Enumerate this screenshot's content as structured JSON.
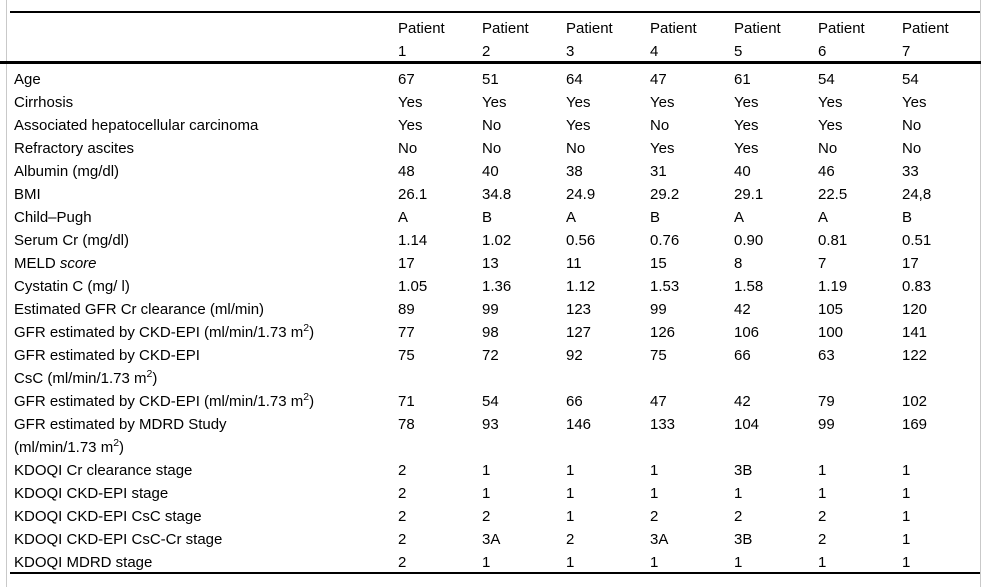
{
  "colors": {
    "text": "#000000",
    "rule": "#000000",
    "page_edge": "#c9c9c9",
    "background": "#ffffff"
  },
  "table": {
    "row_label_header": "",
    "patient_columns": [
      "Patient 1",
      "Patient 2",
      "Patient 3",
      "Patient 4",
      "Patient 5",
      "Patient 6",
      "Patient 7"
    ],
    "rows": [
      {
        "label": "Age",
        "values": [
          "67",
          "51",
          "64",
          "47",
          "61",
          "54",
          "54"
        ]
      },
      {
        "label": "Cirrhosis",
        "values": [
          "Yes",
          "Yes",
          "Yes",
          "Yes",
          "Yes",
          "Yes",
          "Yes"
        ]
      },
      {
        "label": "Associated hepatocellular carcinoma",
        "values": [
          "Yes",
          "No",
          "Yes",
          "No",
          "Yes",
          "Yes",
          "No"
        ]
      },
      {
        "label": "Refractory ascites",
        "values": [
          "No",
          "No",
          "No",
          "Yes",
          "Yes",
          "No",
          "No"
        ]
      },
      {
        "label": "Albumin (mg/dl)",
        "values": [
          "48",
          "40",
          "38",
          "31",
          "40",
          "46",
          "33"
        ]
      },
      {
        "label": "BMI",
        "values": [
          "26.1",
          "34.8",
          "24.9",
          "29.2",
          "29.1",
          "22.5",
          "24,8"
        ]
      },
      {
        "label": "Child–Pugh",
        "values": [
          "A",
          "B",
          "A",
          "B",
          "A",
          "A",
          "B"
        ]
      },
      {
        "label": "Serum Cr (mg/dl)",
        "values": [
          "1.14",
          "1.02",
          "0.56",
          "0.76",
          "0.90",
          "0.81",
          "0.51"
        ]
      },
      {
        "label": "MELD ",
        "label_italic": "score",
        "values": [
          "17",
          "13",
          "11",
          "15",
          "8",
          "7",
          "17"
        ]
      },
      {
        "label": "Cystatin C (mg/ l)",
        "values": [
          "1.05",
          "1.36",
          "1.12",
          "1.53",
          "1.58",
          "1.19",
          "0.83"
        ]
      },
      {
        "label": "Estimated GFR Cr clearance (ml/min)",
        "values": [
          "89",
          "99",
          "123",
          "99",
          "42",
          "105",
          "120"
        ]
      },
      {
        "label": "GFR estimated by CKD-EPI (ml/min/1.73 m²)",
        "values": [
          "77",
          "98",
          "127",
          "126",
          "106",
          "100",
          "141"
        ]
      },
      {
        "label": "GFR estimated by CKD-EPI",
        "label_line2": "CsC (ml/min/1.73 m²)",
        "values": [
          "75",
          "72",
          "92",
          "75",
          "66",
          "63",
          "122"
        ]
      },
      {
        "label": "GFR estimated by CKD-EPI (ml/min/1.73 m²)",
        "values": [
          "71",
          "54",
          "66",
          "47",
          "42",
          "79",
          "102"
        ]
      },
      {
        "label": "GFR estimated by MDRD Study",
        "label_line2": "(ml/min/1.73 m²)",
        "values": [
          "78",
          "93",
          "146",
          "133",
          "104",
          "99",
          "169"
        ]
      },
      {
        "label": "KDOQI Cr clearance stage",
        "values": [
          "2",
          "1",
          "1",
          "1",
          "3B",
          "1",
          "1"
        ]
      },
      {
        "label": "KDOQI CKD-EPI stage",
        "values": [
          "2",
          "1",
          "1",
          "1",
          "1",
          "1",
          "1"
        ]
      },
      {
        "label": "KDOQI CKD-EPI CsC stage",
        "values": [
          "2",
          "2",
          "1",
          "2",
          "2",
          "2",
          "1"
        ]
      },
      {
        "label": "KDOQI CKD-EPI CsC-Cr stage",
        "values": [
          "2",
          "3A",
          "2",
          "3A",
          "3B",
          "2",
          "1"
        ]
      },
      {
        "label": "KDOQI MDRD stage",
        "values": [
          "2",
          "1",
          "1",
          "1",
          "1",
          "1",
          "1"
        ]
      }
    ]
  }
}
